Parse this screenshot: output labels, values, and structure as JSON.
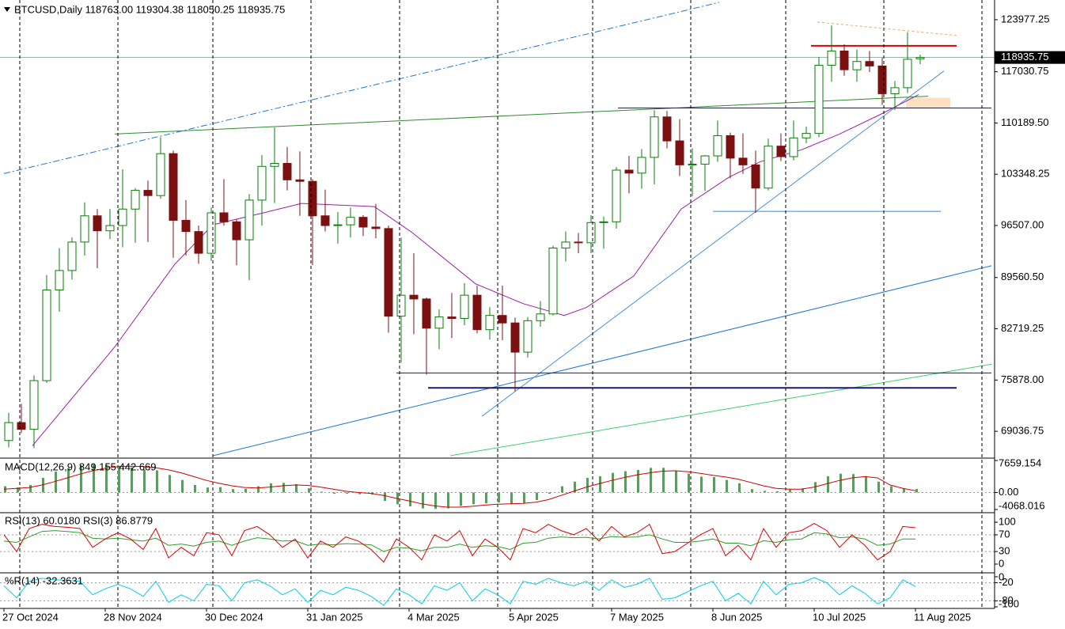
{
  "chart_data": {
    "type": "candlestick",
    "header": "BTCUSD,Daily  118763.00 119304.38 118050.25 118935.75",
    "xlim": [
      0,
      313
    ],
    "xticks": [
      {
        "value": 0,
        "label": "27 Oct 2024"
      },
      {
        "value": 32,
        "label": "28 Nov 2024"
      },
      {
        "value": 64,
        "label": "30 Dec 2024"
      },
      {
        "value": 96,
        "label": "31 Jan 2025"
      },
      {
        "value": 128,
        "label": "4 Mar 2025"
      },
      {
        "value": 160,
        "label": "5 Apr 2025"
      },
      {
        "value": 192,
        "label": "7 May 2025"
      },
      {
        "value": 224,
        "label": "8 Jun 2025"
      },
      {
        "value": 256,
        "label": "10 Jul 2025"
      },
      {
        "value": 288,
        "label": "11 Aug 2025"
      }
    ],
    "separators": [
      5,
      36,
      66,
      97,
      125,
      156,
      186,
      217,
      247,
      278,
      309
    ],
    "ylim": [
      65563,
      126608
    ],
    "yticks": [
      123977.25,
      117030.75,
      {
        "value": 110189.5,
        "label": "110189.50"
      },
      103348.25,
      {
        "value": 96507,
        "label": "96507.00"
      },
      {
        "value": 89560.5,
        "label": "89560.50"
      },
      82719.25,
      {
        "value": 75878,
        "label": "75878.00"
      },
      69036.75
    ],
    "last_price": 118935.75,
    "up_color": "#0b7d0b",
    "down_color": "#7a1010",
    "x": [
      0,
      4,
      8,
      12,
      16,
      20,
      24,
      28,
      32,
      36,
      40,
      44,
      48,
      52,
      56,
      60,
      64,
      68,
      72,
      76,
      80,
      84,
      88,
      92,
      96,
      100,
      104,
      108,
      112,
      116,
      120,
      124,
      128,
      132,
      136,
      140,
      144,
      148,
      152,
      156,
      160,
      164,
      168,
      172,
      176,
      180,
      184,
      188,
      192,
      196,
      200,
      204,
      208,
      212,
      216,
      220,
      224,
      228,
      232,
      236,
      240,
      244,
      248,
      252,
      256,
      260,
      264,
      268,
      272,
      276,
      280,
      284,
      288
    ],
    "open": [
      67800,
      70200,
      69300,
      75800,
      87900,
      90500,
      94300,
      97800,
      95800,
      96500,
      98700,
      101200,
      100500,
      106100,
      97200,
      95700,
      92800,
      98200,
      97000,
      94600,
      99900,
      104400,
      104800,
      102600,
      102400,
      97800,
      96500,
      96600,
      97600,
      96300,
      96100,
      84400,
      87200,
      86700,
      82800,
      84300,
      84100,
      87200,
      82600,
      84500,
      83500,
      79600,
      83800,
      84700,
      93500,
      94300,
      94200,
      96900,
      97000,
      103900,
      103500,
      105600,
      111000,
      107800,
      104600,
      104700,
      105800,
      108500,
      105500,
      104600,
      101500,
      107100,
      105700,
      108200,
      108800,
      117900,
      119800,
      117300,
      118400,
      117800,
      114100,
      114900,
      118763
    ],
    "high": [
      71500,
      72700,
      76500,
      89900,
      93500,
      94900,
      99600,
      98700,
      98700,
      104000,
      101500,
      102500,
      108300,
      106500,
      99900,
      96500,
      98900,
      102700,
      97300,
      100700,
      105900,
      109600,
      107000,
      106400,
      102700,
      101300,
      98300,
      98900,
      97900,
      99400,
      96500,
      94900,
      92800,
      86900,
      85300,
      87500,
      88800,
      88500,
      85600,
      88500,
      84200,
      84300,
      86400,
      93800,
      95700,
      95500,
      97900,
      97700,
      104300,
      105800,
      106700,
      111900,
      111800,
      110700,
      106800,
      105900,
      110500,
      108900,
      108800,
      106500,
      108100,
      108800,
      110500,
      109700,
      119000,
      123200,
      120700,
      120000,
      119800,
      118900,
      115800,
      122300,
      119304.38
    ],
    "low": [
      66900,
      68800,
      66800,
      75500,
      85000,
      89300,
      92500,
      90800,
      94700,
      93600,
      94200,
      94300,
      100100,
      92200,
      92500,
      91400,
      91800,
      96500,
      91200,
      89200,
      96500,
      99500,
      101200,
      97800,
      91200,
      95700,
      94100,
      94900,
      95100,
      94800,
      82200,
      78200,
      82000,
      76600,
      80000,
      81500,
      83200,
      82100,
      81300,
      81200,
      74400,
      78900,
      83000,
      84500,
      91700,
      92800,
      92800,
      93400,
      96100,
      100800,
      101400,
      102000,
      106800,
      103100,
      100400,
      101100,
      105000,
      102800,
      103400,
      98200,
      101200,
      105100,
      105200,
      107500,
      108300,
      115700,
      116500,
      115700,
      117000,
      112600,
      111900,
      114200,
      118050.25
    ],
    "close": [
      70200,
      69300,
      75800,
      87900,
      90500,
      94300,
      97800,
      95800,
      96500,
      98700,
      101200,
      100500,
      106100,
      97200,
      95700,
      92800,
      98200,
      97000,
      94600,
      99900,
      104400,
      104800,
      102600,
      102400,
      97800,
      96500,
      96600,
      97600,
      96300,
      96100,
      84400,
      87200,
      86700,
      82800,
      84300,
      84100,
      87200,
      82600,
      84500,
      83500,
      79600,
      83800,
      84700,
      93500,
      94300,
      94200,
      96900,
      97000,
      103900,
      103500,
      105600,
      111000,
      107800,
      104600,
      104700,
      105800,
      108500,
      105500,
      104600,
      101500,
      107100,
      105700,
      108200,
      108800,
      117900,
      119800,
      117300,
      118400,
      117800,
      114100,
      114900,
      118700,
      118935.75
    ],
    "overlays": [
      {
        "color": "#9b1fa6",
        "x": [
          9,
          35,
          54,
          66,
          82,
          94,
          117,
          129,
          149,
          164,
          177,
          184,
          199,
          214,
          229,
          239,
          252,
          264,
          277,
          289
        ],
        "values": [
          67100,
          80300,
          91350,
          96600,
          98200,
          99450,
          99030,
          95560,
          88720,
          86085,
          84500,
          85560,
          89770,
          98720,
          102930,
          105030,
          106610,
          108720,
          111350,
          113980
        ]
      }
    ],
    "drawings": [
      {
        "color": "#1f77d0",
        "dash": "8,3,2,3",
        "width": 1,
        "points": [
          [
            0,
            103440
          ],
          [
            226,
            126292
          ]
        ]
      },
      {
        "color": "#1f77d0",
        "dash": "",
        "width": 1,
        "points": [
          [
            66,
            65774
          ],
          [
            312,
            91139
          ]
        ]
      },
      {
        "color": "#3cd070",
        "dash": "",
        "width": 1,
        "points": [
          [
            141,
            65774
          ],
          [
            312,
            77983
          ]
        ]
      },
      {
        "color": "#4a90d9",
        "dash": "",
        "width": 1,
        "points": [
          [
            151,
            71036
          ],
          [
            297,
            117135
          ]
        ]
      },
      {
        "color": "#2e8b2e",
        "dash": "",
        "width": 1,
        "points": [
          [
            35,
            108716
          ],
          [
            292,
            113768
          ]
        ]
      },
      {
        "color": "#202040",
        "dash": "",
        "width": 1,
        "points": [
          [
            194,
            112190
          ],
          [
            312,
            112190
          ]
        ]
      },
      {
        "color": "#1e90ff",
        "dash": "",
        "width": 1,
        "points": [
          [
            224,
            98400
          ],
          [
            296,
            98400
          ]
        ]
      },
      {
        "color": "#191970",
        "dash": "",
        "width": 1,
        "points": [
          [
            124,
            76826
          ],
          [
            312,
            76826
          ]
        ]
      },
      {
        "color": "#191970",
        "dash": "",
        "width": 2,
        "points": [
          [
            134,
            74826
          ],
          [
            301,
            74826
          ]
        ]
      },
      {
        "color": "#e00000",
        "dash": "",
        "width": 2,
        "points": [
          [
            255,
            120500
          ],
          [
            301,
            120500
          ]
        ]
      },
      {
        "color": "#f4a460",
        "dash": "3,3",
        "width": 1,
        "points": [
          [
            257,
            123660
          ],
          [
            301,
            121870
          ]
        ]
      }
    ],
    "zones": [
      {
        "color": "#fde0c0",
        "x": [
          285,
          299
        ],
        "y": [
          112190,
          113557
        ]
      }
    ],
    "indicators": [
      {
        "type": "macd",
        "label": "MACD(12,26,9) 849.155 442.669",
        "ylim": [
          -4068.016,
          7659.154
        ],
        "yticks": [
          7659.154,
          {
            "value": 0,
            "label": "0.00"
          },
          -4068.016
        ],
        "levels": [
          0
        ],
        "series": [
          {
            "type": "histogram",
            "color": "#3cb043",
            "values": [
              1500,
              1200,
              1800,
              3500,
              5000,
              5800,
              6500,
              6800,
              6600,
              6400,
              6000,
              5500,
              5300,
              4200,
              3000,
              1800,
              1200,
              1300,
              800,
              900,
              1500,
              2200,
              2300,
              2000,
              1000,
              200,
              -300,
              -300,
              -400,
              -500,
              -2000,
              -2800,
              -3300,
              -3800,
              -3900,
              -3800,
              -3200,
              -2800,
              -2600,
              -2400,
              -2800,
              -2500,
              -1800,
              -300,
              1500,
              2600,
              3500,
              3900,
              4700,
              5100,
              5400,
              5900,
              5900,
              5200,
              4500,
              3800,
              3700,
              3000,
              2200,
              800,
              400,
              300,
              700,
              1000,
              2500,
              3900,
              4500,
              4400,
              3900,
              2600,
              1500,
              900,
              849.155
            ]
          },
          {
            "type": "line",
            "color": "#d00000",
            "values": [
              800,
              1000,
              1200,
              1800,
              2600,
              3500,
              4400,
              5200,
              5800,
              6200,
              6300,
              6200,
              5900,
              5400,
              4700,
              3800,
              2900,
              2200,
              1600,
              1200,
              1100,
              1300,
              1600,
              1800,
              1700,
              1300,
              800,
              300,
              0,
              -200,
              -700,
              -1400,
              -2000,
              -2700,
              -3200,
              -3500,
              -3500,
              -3300,
              -3000,
              -2800,
              -2700,
              -2600,
              -2300,
              -1700,
              -700,
              300,
              1300,
              2100,
              2900,
              3600,
              4200,
              4700,
              5100,
              5200,
              5000,
              4600,
              4100,
              3700,
              3200,
              2400,
              1600,
              1000,
              800,
              800,
              1300,
              2100,
              2900,
              3500,
              3800,
              3500,
              1800,
              1000,
              442.669
            ]
          }
        ]
      },
      {
        "type": "rsi",
        "label": "RSI(13) 60.0180  RSI(3) 86.8779",
        "ylim": [
          -17,
          119
        ],
        "yticks": [
          100,
          70,
          30,
          0
        ],
        "levels": [
          70,
          30
        ],
        "series": [
          {
            "type": "line",
            "color": "#2e9e2e",
            "values": [
              55,
              52,
              65,
              78,
              80,
              78,
              75,
              62,
              60,
              62,
              58,
              55,
              62,
              45,
              48,
              43,
              52,
              55,
              45,
              55,
              63,
              60,
              55,
              56,
              45,
              48,
              46,
              49,
              48,
              46,
              30,
              40,
              38,
              32,
              40,
              40,
              48,
              40,
              44,
              42,
              35,
              50,
              52,
              62,
              65,
              63,
              64,
              60,
              66,
              64,
              65,
              70,
              60,
              52,
              52,
              55,
              60,
              50,
              50,
              44,
              56,
              52,
              58,
              60,
              75,
              72,
              63,
              65,
              60,
              45,
              48,
              60,
              60.018
            ]
          },
          {
            "type": "line",
            "color": "#e00000",
            "values": [
              70,
              30,
              85,
              95,
              90,
              88,
              85,
              40,
              60,
              75,
              60,
              35,
              85,
              15,
              40,
              20,
              75,
              70,
              20,
              80,
              90,
              70,
              40,
              60,
              15,
              55,
              40,
              65,
              55,
              35,
              5,
              60,
              40,
              10,
              70,
              55,
              80,
              20,
              60,
              40,
              10,
              85,
              75,
              95,
              80,
              70,
              85,
              55,
              90,
              65,
              75,
              95,
              25,
              30,
              50,
              70,
              85,
              20,
              45,
              10,
              85,
              40,
              75,
              80,
              97,
              80,
              40,
              70,
              45,
              10,
              30,
              90,
              86.8779
            ]
          }
        ]
      },
      {
        "type": "wpr",
        "label": "%R(14) -32.3631",
        "ylim": [
          -102.6,
          7.8
        ],
        "yticks": [
          0,
          -20,
          -80,
          -100
        ],
        "levels": [
          -20,
          -80
        ],
        "series": [
          {
            "type": "line",
            "color": "#00cfe8",
            "values": [
              -30,
              -70,
              -15,
              -5,
              -10,
              -12,
              -15,
              -60,
              -40,
              -25,
              -40,
              -65,
              -15,
              -85,
              -60,
              -80,
              -25,
              -30,
              -80,
              -20,
              -10,
              -30,
              -60,
              -40,
              -85,
              -45,
              -60,
              -35,
              -45,
              -65,
              -95,
              -40,
              -60,
              -90,
              -30,
              -45,
              -20,
              -80,
              -40,
              -60,
              -90,
              -15,
              -25,
              -5,
              -20,
              -30,
              -15,
              -45,
              -10,
              -35,
              -25,
              -5,
              -75,
              -70,
              -50,
              -30,
              -15,
              -80,
              -55,
              -90,
              -15,
              -60,
              -25,
              -20,
              -3,
              -20,
              -60,
              -30,
              -55,
              -90,
              -70,
              -10,
              -32.3631
            ]
          }
        ]
      }
    ]
  }
}
